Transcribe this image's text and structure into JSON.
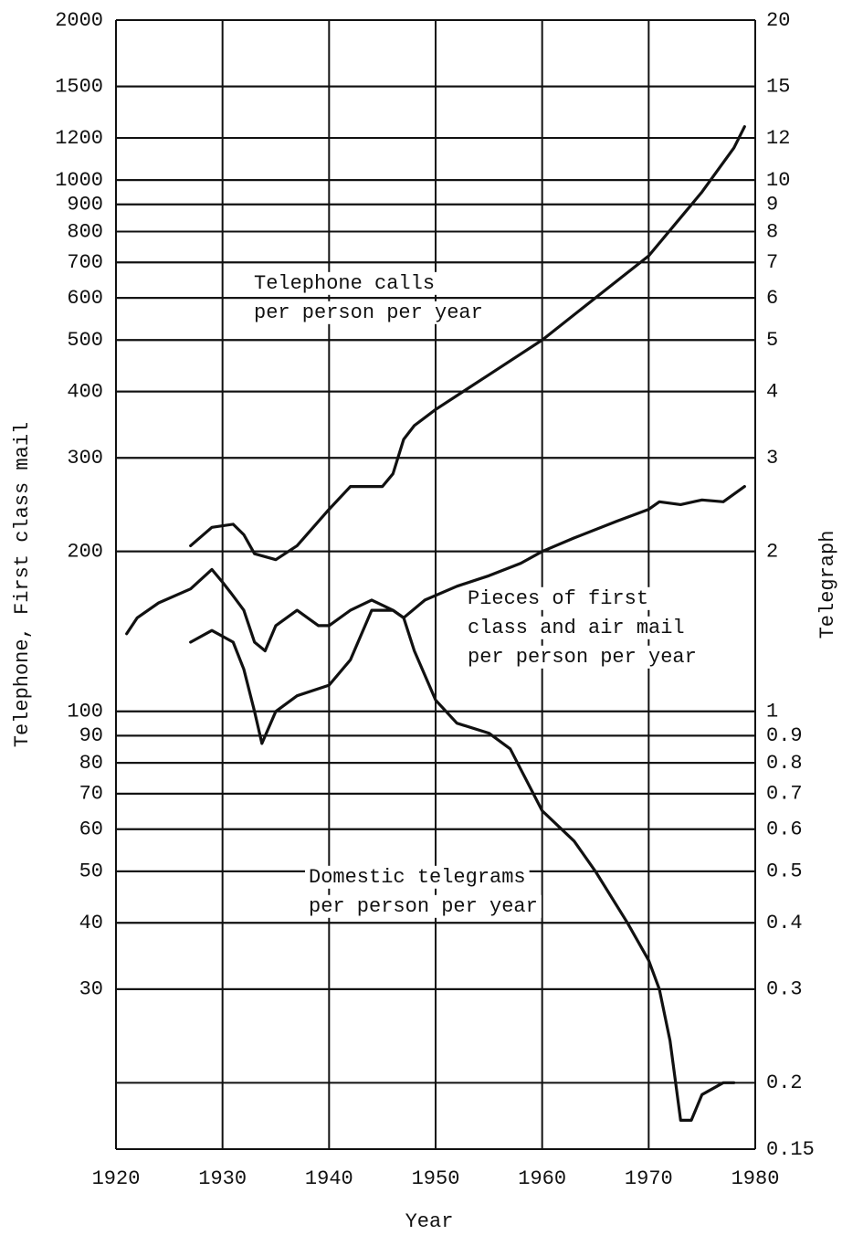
{
  "chart_data": {
    "type": "line",
    "x_label": "Year",
    "y_label": "Telephone, First class mail",
    "y2_label": "Telegraph",
    "xlim": [
      1920,
      1980
    ],
    "xticks": [
      1920,
      1930,
      1940,
      1950,
      1960,
      1970,
      1980
    ],
    "log_scale": true,
    "grid": true,
    "ylim": [
      15,
      2000
    ],
    "yticks": [
      2000,
      1500,
      1200,
      1000,
      900,
      800,
      700,
      600,
      500,
      400,
      300,
      200,
      100,
      90,
      80,
      70,
      60,
      50,
      40,
      30
    ],
    "y2lim": [
      0.15,
      20
    ],
    "y2ticks": [
      20,
      15,
      12,
      10,
      9,
      8,
      7,
      6,
      5,
      4,
      3,
      2,
      1,
      0.9,
      0.8,
      0.7,
      0.6,
      0.5,
      0.4,
      0.3,
      0.2,
      0.15
    ],
    "series": [
      {
        "name": "Telephone calls per person per year",
        "color": "#111111",
        "x": [
          1927,
          1929,
          1931,
          1932,
          1933,
          1935,
          1937,
          1940,
          1942,
          1945,
          1946,
          1947,
          1948,
          1950,
          1955,
          1960,
          1965,
          1970,
          1973,
          1975,
          1978,
          1979
        ],
        "values": [
          205,
          222,
          225,
          215,
          198,
          193,
          205,
          240,
          265,
          265,
          280,
          325,
          345,
          370,
          430,
          500,
          600,
          720,
          850,
          950,
          1150,
          1260
        ]
      },
      {
        "name": "Pieces of first class and air mail per person per year",
        "color": "#111111",
        "x": [
          1921,
          1922,
          1924,
          1927,
          1929,
          1930,
          1931,
          1932,
          1933,
          1934,
          1935,
          1937,
          1939,
          1940,
          1942,
          1944,
          1946,
          1947,
          1949,
          1952,
          1955,
          1958,
          1960,
          1963,
          1967,
          1970,
          1971,
          1973,
          1975,
          1977,
          1979
        ],
        "values": [
          140,
          150,
          160,
          170,
          185,
          175,
          165,
          155,
          135,
          130,
          145,
          155,
          145,
          145,
          155,
          162,
          155,
          150,
          162,
          172,
          180,
          190,
          200,
          212,
          228,
          240,
          248,
          245,
          250,
          248,
          265
        ]
      },
      {
        "name": "Domestic telegrams per person per year",
        "color": "#111111",
        "axis": "y2",
        "x": [
          1927,
          1929,
          1931,
          1932,
          1933,
          1933.7,
          1935,
          1937,
          1940,
          1942,
          1944,
          1946,
          1947,
          1948,
          1950,
          1952,
          1955,
          1957,
          1960,
          1963,
          1965,
          1968,
          1970,
          1971,
          1972,
          1973,
          1974,
          1975,
          1977,
          1978
        ],
        "values": [
          1.35,
          1.42,
          1.35,
          1.2,
          1.0,
          0.87,
          1.0,
          1.07,
          1.12,
          1.25,
          1.55,
          1.55,
          1.5,
          1.3,
          1.05,
          0.95,
          0.91,
          0.85,
          0.65,
          0.57,
          0.5,
          0.4,
          0.34,
          0.3,
          0.24,
          0.17,
          0.17,
          0.19,
          0.2,
          0.2
        ]
      }
    ],
    "annotations": [
      {
        "lines": [
          "Telephone calls",
          "per person per year"
        ]
      },
      {
        "lines": [
          "Pieces of first",
          "class and air mail",
          "per person per year"
        ]
      },
      {
        "lines": [
          "Domestic telegrams",
          "per person per year"
        ]
      }
    ]
  }
}
